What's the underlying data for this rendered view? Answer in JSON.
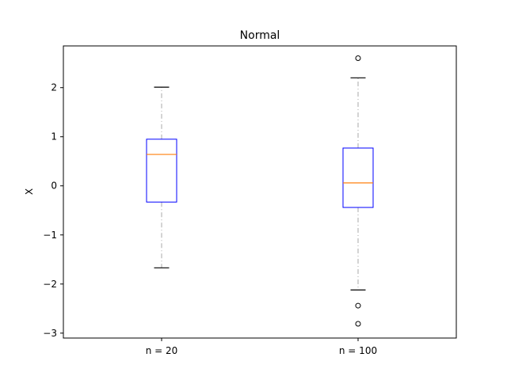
{
  "chart_data": {
    "type": "box",
    "title": "Normal",
    "xlabel": "",
    "ylabel": "X",
    "ylim": [
      -3.1,
      2.85
    ],
    "yticks": [
      -3,
      -2,
      -1,
      0,
      1,
      2
    ],
    "ytick_labels": [
      "−3",
      "−2",
      "−1",
      "0",
      "1",
      "2"
    ],
    "grid": false,
    "categories": [
      "n = 20",
      "n = 100"
    ],
    "boxes": [
      {
        "category": "n = 20",
        "whisker_low": -1.67,
        "q1": -0.33,
        "median": 0.64,
        "q3": 0.95,
        "whisker_high": 2.01,
        "outliers": []
      },
      {
        "category": "n = 100",
        "whisker_low": -2.12,
        "q1": -0.44,
        "median": 0.06,
        "q3": 0.77,
        "whisker_high": 2.2,
        "outliers": [
          2.6,
          -2.44,
          -2.81
        ]
      }
    ],
    "colors": {
      "box": "#0000ff",
      "median": "#ff7f0e",
      "whisker": "#aaaaaa",
      "cap": "#000000",
      "outlier": "#000000",
      "axes": "#000000"
    }
  }
}
